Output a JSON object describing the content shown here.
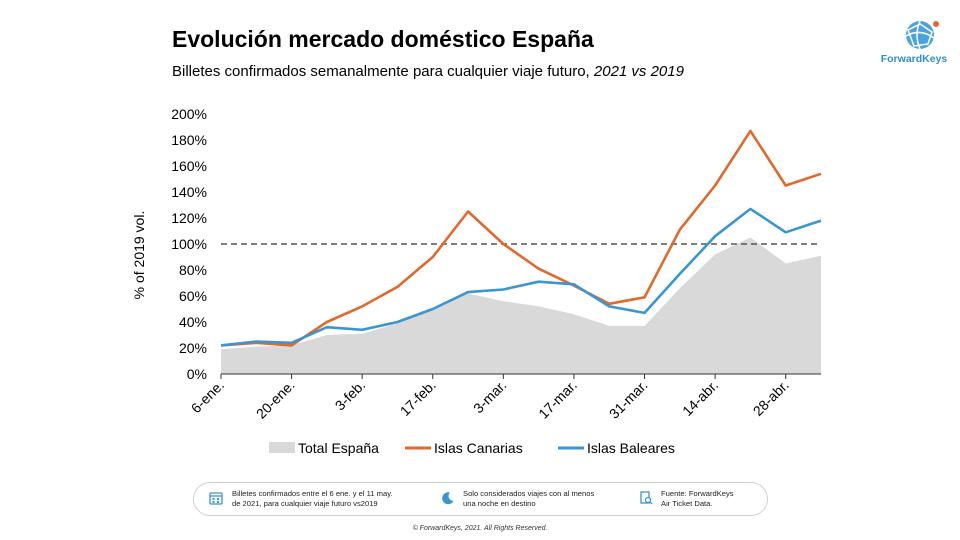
{
  "header": {
    "title": "Evolución mercado doméstico España",
    "subtitle": "Billetes confirmados semanalmente para cualquier viaje futuro, ",
    "subtitle_italic": "2021 vs 2019"
  },
  "logo": {
    "text": "ForwardKeys",
    "color": "#2f8fd0"
  },
  "chart_data": {
    "type": "line",
    "ylabel": "% of 2019 vol.",
    "xlabel": "",
    "ylim": [
      0,
      200
    ],
    "y_ticks": [
      "0%",
      "20%",
      "40%",
      "60%",
      "80%",
      "100%",
      "120%",
      "140%",
      "160%",
      "180%",
      "200%"
    ],
    "x_ticks": [
      "6-ene.",
      "20-ene.",
      "3-feb.",
      "17-feb.",
      "3-mar.",
      "17-mar.",
      "31-mar.",
      "14-abr.",
      "28-abr."
    ],
    "x": [
      "6-ene.",
      "13-ene.",
      "20-ene.",
      "27-ene.",
      "3-feb.",
      "10-feb.",
      "17-feb.",
      "24-feb.",
      "3-mar.",
      "10-mar.",
      "17-mar.",
      "24-mar.",
      "31-mar.",
      "7-abr.",
      "14-abr.",
      "21-abr.",
      "28-abr.",
      "5-may."
    ],
    "reference_line": 100,
    "grid": false,
    "legend_position": "bottom",
    "series": [
      {
        "name": "Total España",
        "kind": "area",
        "color": "#d9d9d9",
        "values": [
          19,
          21,
          22,
          30,
          31,
          39,
          50,
          62,
          56,
          52,
          46,
          37,
          37,
          66,
          92,
          105,
          85,
          91
        ]
      },
      {
        "name": "Islas Canarias",
        "kind": "line",
        "color": "#e0692e",
        "values": [
          22,
          24,
          22,
          40,
          52,
          67,
          90,
          125,
          100,
          81,
          68,
          54,
          59,
          111,
          145,
          187,
          145,
          154
        ]
      },
      {
        "name": "Islas Baleares",
        "kind": "line",
        "color": "#3a96d1",
        "values": [
          22,
          25,
          24,
          36,
          34,
          40,
          50,
          63,
          65,
          71,
          69,
          52,
          47,
          77,
          106,
          127,
          109,
          118
        ]
      }
    ]
  },
  "footer": {
    "item1": [
      "Billetes confirmados entre el 6 ene. y el 11 may.",
      "de 2021, para cualquier viaje futuro vs2019"
    ],
    "item2": [
      "Solo considerados viajes con al menos",
      "una noche en destino"
    ],
    "item3": [
      "Fuente: ForwardKeys",
      "Air Ticket Data."
    ],
    "copyright": "© ForwardKeys, 2021. All Rights Reserved."
  }
}
